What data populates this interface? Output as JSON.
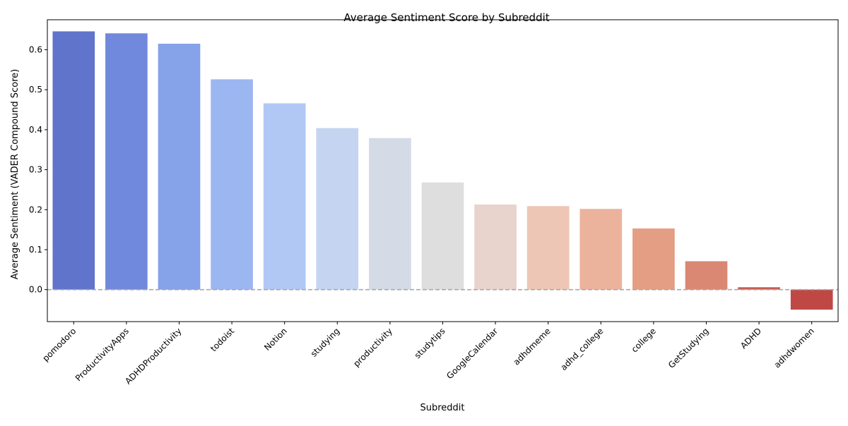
{
  "chart_data": {
    "type": "bar",
    "title": "Average Sentiment Score by Subreddit",
    "xlabel": "Subreddit",
    "ylabel": "Average Sentiment (VADER Compound Score)",
    "categories": [
      "pomodoro",
      "ProductivityApps",
      "ADHDProductivity",
      "todoist",
      "Notion",
      "studying",
      "productivity",
      "studytips",
      "GoogleCalendar",
      "adhdmeme",
      "adhd_college",
      "college",
      "GetStudying",
      "ADHD",
      "adhdwomen"
    ],
    "values": [
      0.646,
      0.641,
      0.615,
      0.526,
      0.466,
      0.404,
      0.379,
      0.268,
      0.213,
      0.209,
      0.202,
      0.153,
      0.071,
      0.006,
      -0.05
    ],
    "colors": [
      "#6074cc",
      "#7189dc",
      "#86a2e9",
      "#9cb6f2",
      "#b1c8f5",
      "#c5d4f1",
      "#d4dbe7",
      "#dedede",
      "#e8d4cc",
      "#eec6b5",
      "#ecb39c",
      "#e49e84",
      "#da8873",
      "#c95c52",
      "#bf4845"
    ],
    "ylim": [
      -0.08,
      0.675
    ],
    "yticks": [
      0.0,
      0.1,
      0.2,
      0.3,
      0.4,
      0.5,
      0.6
    ],
    "ytick_labels": [
      "0.0",
      "0.1",
      "0.2",
      "0.3",
      "0.4",
      "0.5",
      "0.6"
    ],
    "reference_line": 0,
    "grid": false,
    "legend": "none"
  }
}
